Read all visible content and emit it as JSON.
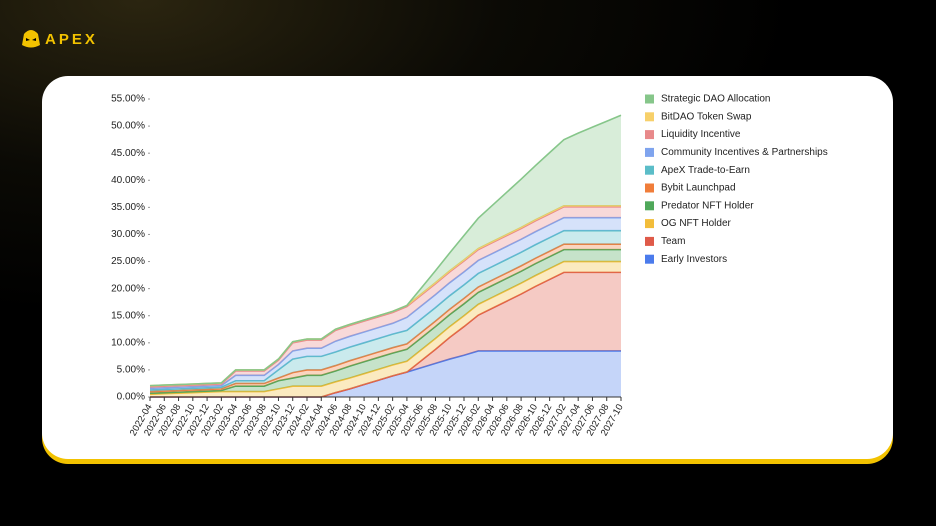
{
  "brand": "APEX",
  "chart_data": {
    "type": "stacked-area",
    "categories": [
      "2022-04",
      "2022-06",
      "2022-08",
      "2022-10",
      "2022-12",
      "2023-02",
      "2023-04",
      "2023-06",
      "2023-08",
      "2023-10",
      "2023-12",
      "2024-02",
      "2024-04",
      "2024-06",
      "2024-08",
      "2024-10",
      "2024-12",
      "2025-02",
      "2025-04",
      "2025-06",
      "2025-08",
      "2025-10",
      "2025-12",
      "2026-02",
      "2026-04",
      "2026-06",
      "2026-08",
      "2026-10",
      "2026-12",
      "2027-02",
      "2027-04",
      "2027-06",
      "2027-08",
      "2027-10"
    ],
    "ylim": [
      0,
      55
    ],
    "yticks": [
      {
        "value": 0,
        "label": "0.00%"
      },
      {
        "value": 5,
        "label": "5.00%"
      },
      {
        "value": 10,
        "label": "10.00%"
      },
      {
        "value": 15,
        "label": "15.00%"
      },
      {
        "value": 20,
        "label": "20.00%"
      },
      {
        "value": 25,
        "label": "25.00%"
      },
      {
        "value": 30,
        "label": "30.00%"
      },
      {
        "value": 35,
        "label": "35.00%"
      },
      {
        "value": 40,
        "label": "40.00%"
      },
      {
        "value": 45,
        "label": "45.00%"
      },
      {
        "value": 50,
        "label": "50.00%"
      },
      {
        "value": 55,
        "label": "55.00%"
      }
    ],
    "legend": "right",
    "series": [
      {
        "name": "Early Investors",
        "color": "#4b7bec",
        "values": [
          0,
          0,
          0,
          0,
          0,
          0,
          0,
          0,
          0,
          0,
          0,
          0,
          0,
          0.8,
          1.5,
          2.3,
          3.1,
          3.9,
          4.6,
          5.4,
          6.2,
          7.0,
          7.7,
          8.5,
          8.5,
          8.5,
          8.5,
          8.5,
          8.5,
          8.5,
          8.5,
          8.5,
          8.5,
          8.5
        ]
      },
      {
        "name": "Team",
        "color": "#df5a49",
        "values": [
          0,
          0,
          0,
          0,
          0,
          0,
          0,
          0,
          0,
          0,
          0,
          0,
          0,
          0,
          0,
          0,
          0,
          0,
          0,
          1.3,
          2.6,
          4.0,
          5.3,
          6.6,
          7.9,
          9.2,
          10.5,
          11.9,
          13.2,
          14.5,
          14.5,
          14.5,
          14.5,
          14.5
        ]
      },
      {
        "name": "OG NFT Holder",
        "color": "#f2bd3a",
        "values": [
          0.5,
          0.6,
          0.7,
          0.8,
          0.9,
          1.0,
          1.0,
          1.0,
          1.0,
          1.5,
          2,
          2,
          2,
          2,
          2,
          2,
          2,
          2,
          2,
          2,
          2,
          2,
          2,
          2,
          2,
          2,
          2,
          2,
          2,
          2,
          2,
          2,
          2,
          2
        ]
      },
      {
        "name": "Predator NFT Holder",
        "color": "#4fa85a",
        "values": [
          0.2,
          0.2,
          0.2,
          0.2,
          0.2,
          0.2,
          1.0,
          1.0,
          1.0,
          1.5,
          1.5,
          2.0,
          2.0,
          2.0,
          2.2,
          2.2,
          2.2,
          2.2,
          2.2,
          2.2,
          2.2,
          2.2,
          2.2,
          2.2,
          2.2,
          2.2,
          2.2,
          2.2,
          2.2,
          2.2,
          2.2,
          2.2,
          2.2,
          2.2
        ]
      },
      {
        "name": "Bybit Launchpad",
        "color": "#f07d3a",
        "values": [
          0.3,
          0.3,
          0.3,
          0.3,
          0.3,
          0.3,
          0.5,
          0.5,
          0.5,
          0.5,
          1,
          1,
          1,
          1,
          1,
          1,
          1,
          1,
          1,
          1,
          1,
          1,
          1,
          1,
          1,
          1,
          1,
          1,
          1,
          1,
          1,
          1,
          1,
          1
        ]
      },
      {
        "name": "ApeX Trade-to-Earn",
        "color": "#5bbdc8",
        "values": [
          0.3,
          0.3,
          0.3,
          0.3,
          0.3,
          0.3,
          0.5,
          0.5,
          0.5,
          1.5,
          2.5,
          2.5,
          2.5,
          2.5,
          2.5,
          2.5,
          2.5,
          2.5,
          2.5,
          2.5,
          2.5,
          2.5,
          2.5,
          2.5,
          2.5,
          2.5,
          2.5,
          2.5,
          2.5,
          2.5,
          2.5,
          2.5,
          2.5,
          2.5
        ]
      },
      {
        "name": "Community Incentives & Partnerships",
        "color": "#7fa4ee",
        "values": [
          0.3,
          0.3,
          0.3,
          0.3,
          0.3,
          0.3,
          1.0,
          1.0,
          1.0,
          1.0,
          1.5,
          1.5,
          1.5,
          2.0,
          2.0,
          2.0,
          2.0,
          2.0,
          2.4,
          2.4,
          2.4,
          2.4,
          2.4,
          2.4,
          2.4,
          2.4,
          2.4,
          2.4,
          2.4,
          2.4,
          2.4,
          2.4,
          2.4,
          2.4
        ]
      },
      {
        "name": "Liquidity Incentive",
        "color": "#e8898a",
        "values": [
          0.3,
          0.3,
          0.3,
          0.3,
          0.3,
          0.3,
          0.8,
          0.8,
          0.8,
          0.8,
          1.5,
          1.5,
          1.5,
          2,
          2,
          2,
          2,
          2,
          2,
          2,
          2,
          2,
          2,
          2,
          2,
          2,
          2,
          2,
          2,
          2,
          2,
          2,
          2,
          2
        ]
      },
      {
        "name": "BitDAO Token Swap",
        "color": "#f7d06a",
        "values": [
          0.2,
          0.2,
          0.2,
          0.2,
          0.2,
          0.2,
          0.2,
          0.2,
          0.2,
          0.2,
          0.2,
          0.2,
          0.2,
          0.2,
          0.2,
          0.2,
          0.2,
          0.2,
          0.2,
          0.2,
          0.2,
          0.2,
          0.2,
          0.2,
          0.2,
          0.2,
          0.2,
          0.2,
          0.2,
          0.2,
          0.2,
          0.2,
          0.2,
          0.2
        ]
      },
      {
        "name": "Strategic DAO Allocation",
        "color": "#86c68a",
        "values": [
          0,
          0,
          0,
          0,
          0,
          0,
          0,
          0,
          0,
          0,
          0,
          0,
          0,
          0,
          0,
          0,
          0,
          0,
          0,
          1.1,
          2.2,
          3.3,
          4.5,
          5.6,
          6.7,
          7.8,
          8.9,
          10.0,
          11.1,
          12.2,
          13.4,
          14.5,
          15.6,
          16.7
        ]
      }
    ]
  }
}
